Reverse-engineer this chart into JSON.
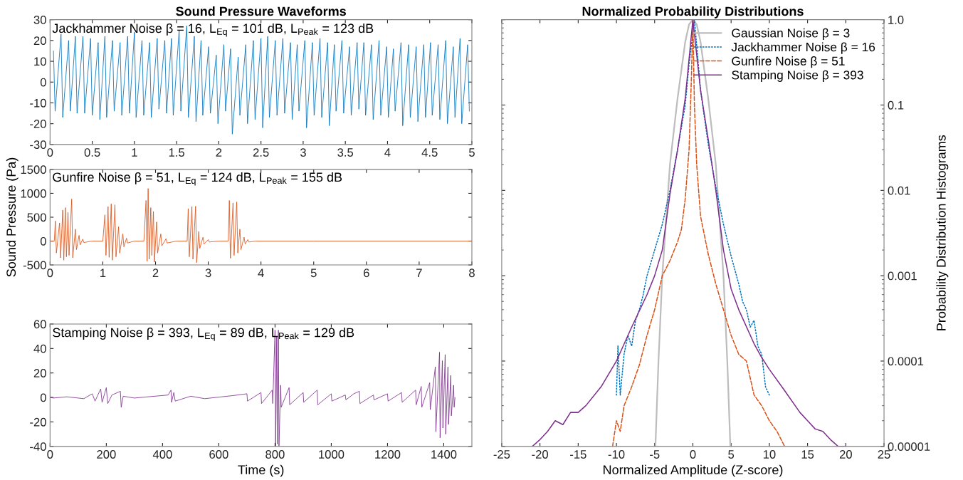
{
  "chart_data": [
    {
      "type": "line",
      "title": "Sound Pressure Waveforms",
      "annotations": [
        "Jackhammer Noise β = 16, L$_{Eq}$ = 101 dB, L$_{Peak}$ = 123 dB"
      ],
      "xlim": [
        0,
        5
      ],
      "xticks": [
        0,
        0.5,
        1,
        1.5,
        2,
        2.5,
        3,
        3.5,
        4,
        4.5,
        5
      ],
      "ylim": [
        -30,
        30
      ],
      "yticks": [
        -30,
        -20,
        -10,
        0,
        10,
        20,
        30
      ],
      "grid": false,
      "legend": false,
      "series": [
        {
          "color": "#0072bd",
          "x": [
            0.04,
            0.06,
            0.13,
            0.15,
            0.22,
            0.24,
            0.3,
            0.32,
            0.39,
            0.41,
            0.48,
            0.5,
            0.57,
            0.59,
            0.65,
            0.67,
            0.74,
            0.76,
            0.83,
            0.85,
            0.92,
            0.94,
            1.0,
            1.02,
            1.09,
            1.11,
            1.18,
            1.2,
            1.27,
            1.29,
            1.36,
            1.38,
            1.44,
            1.46,
            1.53,
            1.55,
            1.62,
            1.64,
            1.71,
            1.73,
            1.79,
            1.81,
            1.88,
            1.9,
            1.97,
            1.99,
            2.06,
            2.08,
            2.14,
            2.16,
            2.23,
            2.25,
            2.32,
            2.34,
            2.41,
            2.43,
            2.5,
            2.52,
            2.58,
            2.6,
            2.67,
            2.69,
            2.76,
            2.78,
            2.85,
            2.87,
            2.93,
            2.95,
            3.02,
            3.04,
            3.11,
            3.13,
            3.2,
            3.22,
            3.29,
            3.31,
            3.37,
            3.39,
            3.46,
            3.48,
            3.55,
            3.57,
            3.64,
            3.66,
            3.72,
            3.74,
            3.81,
            3.83,
            3.9,
            3.92,
            3.99,
            4.01,
            4.07,
            4.09,
            4.16,
            4.18,
            4.25,
            4.27,
            4.34,
            4.36,
            4.43,
            4.45,
            4.51,
            4.53,
            4.6,
            4.62,
            4.69,
            4.71,
            4.78,
            4.8,
            4.86,
            4.88,
            4.95,
            4.97
          ],
          "values": [
            15,
            -14,
            23,
            -17,
            20,
            -14,
            22,
            -15,
            22,
            -15,
            21,
            -16,
            19,
            -18,
            22,
            -17,
            20,
            -14,
            19,
            -16,
            22,
            -15,
            24,
            -17,
            20,
            -16,
            19,
            -17,
            21,
            -13,
            20,
            -15,
            21,
            -16,
            25,
            -14,
            27,
            -17,
            22,
            -19,
            20,
            -16,
            17,
            -15,
            13,
            -20,
            18,
            -14,
            16,
            -25,
            12,
            -16,
            18,
            -20,
            20,
            -18,
            21,
            -22,
            22,
            -17,
            20,
            -16,
            21,
            -15,
            19,
            -18,
            18,
            -14,
            20,
            -22,
            19,
            -16,
            21,
            -17,
            19,
            -21,
            18,
            -14,
            20,
            -15,
            17,
            -16,
            19,
            -13,
            19,
            -16,
            18,
            -18,
            20,
            -16,
            17,
            -17,
            16,
            -14,
            19,
            -21,
            18,
            -17,
            17,
            -19,
            18,
            -17,
            19,
            -16,
            18,
            -18,
            20,
            -20,
            17,
            -17,
            21,
            -20,
            18,
            -14
          ]
        }
      ]
    },
    {
      "type": "line",
      "ylabel": "Sound Pressure (Pa)",
      "annotations": [
        "Gunfire Noise β = 51, L$_{Eq}$ = 124 dB, L$_{Peak}$ = 155 dB"
      ],
      "xlim": [
        0,
        8
      ],
      "xticks": [
        0,
        1,
        2,
        3,
        4,
        5,
        6,
        7,
        8
      ],
      "ylim": [
        -500,
        1500
      ],
      "yticks": [
        -500,
        0,
        500,
        1000,
        1500
      ],
      "grid": false,
      "legend": false,
      "series": [
        {
          "color": "#d95319",
          "x": [
            0,
            0.08,
            0.1,
            0.12,
            0.18,
            0.2,
            0.24,
            0.26,
            0.29,
            0.31,
            0.34,
            0.36,
            0.41,
            0.43,
            0.48,
            0.5,
            0.55,
            0.57,
            0.62,
            0.64,
            0.8,
            1.0,
            1.04,
            1.06,
            1.1,
            1.12,
            1.16,
            1.18,
            1.23,
            1.25,
            1.3,
            1.32,
            1.38,
            1.4,
            1.45,
            1.47,
            1.6,
            1.78,
            1.82,
            1.84,
            1.86,
            1.88,
            1.91,
            1.93,
            1.96,
            1.98,
            2.02,
            2.04,
            2.1,
            2.12,
            2.2,
            2.22,
            2.4,
            2.6,
            2.62,
            2.64,
            2.69,
            2.71,
            2.76,
            2.78,
            2.82,
            2.84,
            2.9,
            2.92,
            3.0,
            3.02,
            3.2,
            3.38,
            3.4,
            3.42,
            3.47,
            3.49,
            3.54,
            3.56,
            3.6,
            3.62,
            3.68,
            3.7,
            3.75,
            3.77,
            3.9,
            5,
            8
          ],
          "values": [
            0,
            0,
            420,
            -250,
            380,
            -350,
            650,
            -400,
            700,
            -330,
            600,
            -300,
            880,
            -350,
            250,
            -180,
            120,
            -80,
            40,
            -30,
            0,
            0,
            550,
            -300,
            720,
            -340,
            780,
            -400,
            760,
            -330,
            300,
            -250,
            150,
            -120,
            60,
            -40,
            0,
            0,
            850,
            -420,
            1100,
            -380,
            700,
            -300,
            620,
            -440,
            400,
            -250,
            150,
            -100,
            50,
            -40,
            0,
            0,
            680,
            -330,
            720,
            -380,
            730,
            -450,
            200,
            -150,
            80,
            -60,
            30,
            -20,
            0,
            0,
            850,
            -360,
            800,
            -300,
            820,
            -250,
            250,
            -180,
            80,
            -60,
            30,
            -20,
            0,
            0,
            0
          ]
        }
      ]
    },
    {
      "type": "line",
      "xlabel": "Time (s)",
      "annotations": [
        "Stamping Noise β = 393, L$_{Eq}$ = 89 dB, L$_{Peak}$ = 129 dB"
      ],
      "xlim": [
        0,
        1500
      ],
      "xticks": [
        0,
        200,
        400,
        600,
        800,
        1000,
        1200,
        1400
      ],
      "ylim": [
        -40,
        60
      ],
      "yticks": [
        -40,
        -20,
        0,
        20,
        40,
        60
      ],
      "grid": false,
      "legend": false,
      "series": [
        {
          "color": "#7e2f8e",
          "x": [
            0,
            10,
            60,
            120,
            150,
            160,
            180,
            185,
            200,
            205,
            220,
            250,
            253,
            260,
            300,
            420,
            430,
            432,
            440,
            445,
            500,
            550,
            650,
            700,
            702,
            750,
            752,
            790,
            792,
            800,
            802,
            806,
            808,
            812,
            814,
            820,
            822,
            850,
            852,
            900,
            902,
            950,
            952,
            1000,
            1002,
            1050,
            1052,
            1080,
            1100,
            1102,
            1150,
            1152,
            1200,
            1202,
            1250,
            1252,
            1300,
            1302,
            1320,
            1322,
            1350,
            1352,
            1370,
            1372,
            1385,
            1387,
            1395,
            1397,
            1405,
            1407,
            1415,
            1417,
            1425,
            1427,
            1435,
            1437,
            1440
          ],
          "values": [
            0.5,
            -0.5,
            0.5,
            -1,
            3,
            -3,
            7,
            -4,
            8,
            -5,
            2,
            5,
            -8,
            1,
            -0.5,
            2,
            6,
            -4,
            4,
            -3,
            1,
            -1,
            1.5,
            3,
            -3,
            4,
            -5,
            6,
            -5,
            55,
            -40,
            50,
            -38,
            55,
            -40,
            10,
            -8,
            8,
            -6,
            4,
            -4,
            6,
            -6,
            3,
            -3,
            2,
            -2,
            3,
            5,
            -5,
            2,
            -2,
            3,
            -3,
            4,
            -4,
            6,
            -6,
            9,
            -8,
            12,
            -10,
            25,
            -28,
            37,
            -33,
            30,
            -25,
            35,
            -30,
            25,
            -22,
            18,
            -15,
            10,
            -8,
            0
          ]
        }
      ]
    },
    {
      "type": "line",
      "title": "Normalized Probability Distributions",
      "xlabel": "Normalized Amplitude (Z-score)",
      "ylabel": "Probability Distribution Histograms",
      "log": "y",
      "xlim": [
        -25,
        25
      ],
      "xticks": [
        -25,
        -20,
        -15,
        -10,
        -5,
        0,
        5,
        10,
        15,
        20,
        25
      ],
      "ylim": [
        1e-05,
        1
      ],
      "yticks": [
        {
          "value": 1e-05,
          "label": "0.00001"
        },
        0.0001,
        0.001,
        0.01,
        0.1,
        {
          "value": 1,
          "label": "1.0"
        }
      ],
      "grid": false,
      "legend": "top right",
      "series": [
        {
          "name": "Gaussian Noise β = 3",
          "color": "#bdbdbd",
          "line_style": "solid",
          "x": [
            -4.9,
            -4.5,
            -4,
            -3.4,
            -3,
            -2,
            -1,
            -0.5,
            0,
            0.5,
            1,
            2,
            3,
            3.4,
            4,
            4.5,
            4.9
          ],
          "values": [
            1e-05,
            0.0001,
            0.001,
            0.006,
            0.02,
            0.12,
            0.55,
            0.88,
            1,
            0.88,
            0.55,
            0.12,
            0.02,
            0.006,
            0.001,
            0.0001,
            1e-05
          ]
        },
        {
          "name": "Jackhammer Noise β = 16",
          "color": "#0072bd",
          "line_style": "dotted",
          "x": [
            -10,
            -9.8,
            -9.5,
            -9,
            -8.5,
            -8,
            -7.5,
            -7,
            -6.5,
            -6,
            -5,
            -4,
            -3,
            -2,
            -1,
            -0.5,
            0,
            0.2,
            0.5,
            1,
            2,
            3,
            4,
            5,
            6,
            6.5,
            7,
            7.5,
            8,
            8.5,
            9,
            9.5,
            10
          ],
          "values": [
            4e-05,
            0.00015,
            4e-05,
            0.00012,
            0.0002,
            0.00015,
            0.0003,
            0.0004,
            0.0006,
            0.001,
            0.002,
            0.004,
            0.01,
            0.03,
            0.1,
            0.3,
            0.7,
            1,
            0.5,
            0.15,
            0.035,
            0.011,
            0.004,
            0.0017,
            0.0008,
            0.0005,
            0.0004,
            0.00025,
            0.0003,
            0.00015,
            0.00012,
            5e-05,
            4e-05
          ]
        },
        {
          "name": "Gunfire Noise β = 51",
          "color": "#d95319",
          "line_style": "dashed",
          "x": [
            -10.5,
            -10,
            -9.5,
            -9,
            -8,
            -7,
            -6,
            -5,
            -4,
            -3,
            -2,
            -1.5,
            -1,
            -0.5,
            -0.2,
            0,
            0.2,
            0.5,
            1,
            1.5,
            2,
            3,
            4,
            5,
            6,
            7,
            8,
            9,
            10,
            11,
            12
          ],
          "values": [
            1e-05,
            2e-05,
            1.5e-05,
            3e-05,
            5e-05,
            9e-05,
            0.0002,
            0.0004,
            0.001,
            0.0015,
            0.0025,
            0.0035,
            0.008,
            0.03,
            0.2,
            1,
            0.1,
            0.02,
            0.005,
            0.003,
            0.0018,
            0.0008,
            0.0004,
            0.0002,
            0.00012,
            0.0001,
            4e-05,
            3e-05,
            2e-05,
            1.5e-05,
            1e-05
          ]
        },
        {
          "name": "Stamping Noise β = 393",
          "color": "#7e2f8e",
          "line_style": "solid",
          "x": [
            -21,
            -20,
            -19,
            -18,
            -17,
            -16,
            -15,
            -14,
            -12,
            -10,
            -8,
            -6,
            -5,
            -4,
            -3,
            -2,
            -1,
            0,
            1,
            2,
            3,
            4,
            5,
            6,
            8,
            9,
            10,
            12,
            14,
            15,
            16,
            17,
            18,
            19,
            20
          ],
          "values": [
            1e-05,
            1.2e-05,
            1.5e-05,
            2e-05,
            1.8e-05,
            2.5e-05,
            2.5e-05,
            3e-05,
            5e-05,
            0.0001,
            0.00025,
            0.0006,
            0.001,
            0.002,
            0.009,
            0.03,
            0.12,
            1,
            0.15,
            0.04,
            0.01,
            0.002,
            0.0007,
            0.0004,
            0.00016,
            0.00011,
            8e-05,
            4.5e-05,
            2.5e-05,
            2e-05,
            1.6e-05,
            1.5e-05,
            1.2e-05,
            1e-05,
            1e-05
          ]
        }
      ]
    }
  ]
}
